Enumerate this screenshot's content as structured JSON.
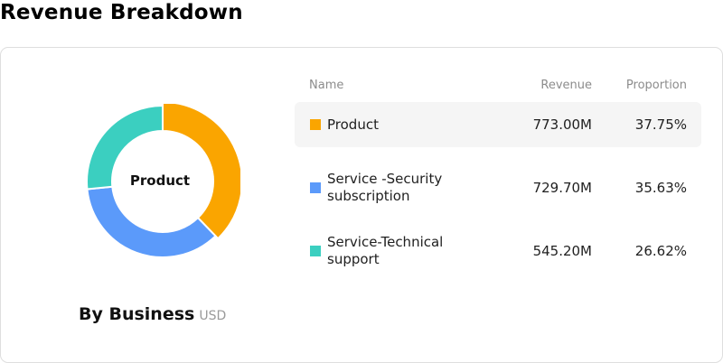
{
  "page": {
    "title": "Revenue Breakdown"
  },
  "chart": {
    "center_label": "Product",
    "caption_title": "By Business",
    "caption_unit": "USD"
  },
  "table": {
    "headers": {
      "name": "Name",
      "revenue": "Revenue",
      "proportion": "Proportion"
    },
    "rows": [
      {
        "name": "Product",
        "revenue": "773.00M",
        "proportion": "37.75%",
        "color": "#FAA500"
      },
      {
        "name": "Service -Security subscription",
        "revenue": "729.70M",
        "proportion": "35.63%",
        "color": "#5B9AFA"
      },
      {
        "name": "Service-Technical support",
        "revenue": "545.20M",
        "proportion": "26.62%",
        "color": "#3BCFC0"
      }
    ]
  },
  "chart_data": {
    "type": "pie",
    "categories": [
      "Product",
      "Service -Security subscription",
      "Service-Technical support"
    ],
    "values": [
      773.0,
      729.7,
      545.2
    ],
    "proportions": [
      37.75,
      35.63,
      26.62
    ],
    "colors": [
      "#FAA500",
      "#5B9AFA",
      "#3BCFC0"
    ],
    "title": "By Business",
    "unit": "USD"
  }
}
